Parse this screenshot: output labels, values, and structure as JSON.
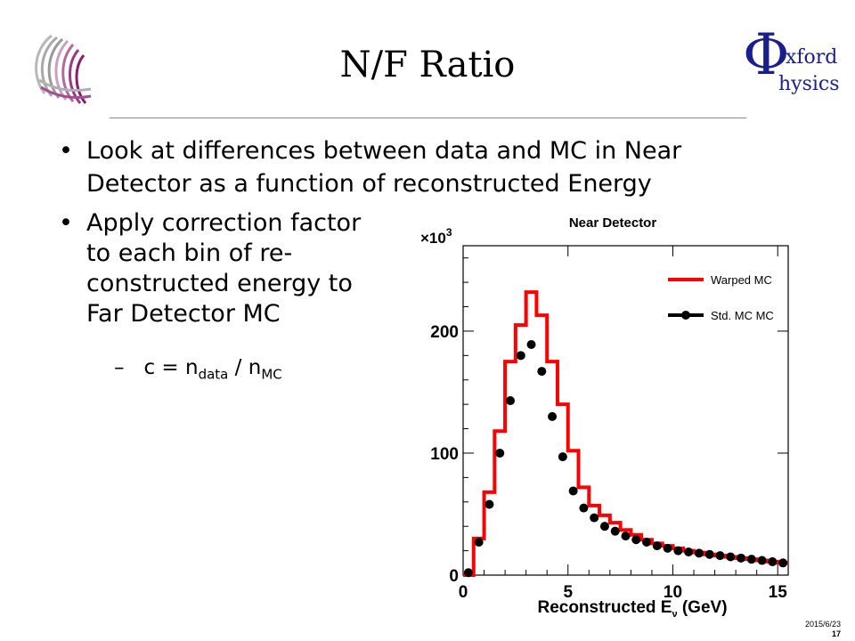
{
  "slide": {
    "title": "N/F Ratio",
    "bullet1_line1": "Look at differences between data and MC in Near",
    "bullet1_line2": "Detector as a function of reconstructed Energy",
    "bullet2_line1": "Apply correction factor",
    "bullet2_line2": "to each bin of re-",
    "bullet2_line3": "constructed energy to",
    "bullet2_line4": "Far Detector MC",
    "sub_dash": "–",
    "sub_prefix": "c = n",
    "sub_data": "data",
    "sub_sep": " / n",
    "sub_mc": "MC",
    "bullet_glyph": "•"
  },
  "logos": {
    "right_phi": "Φ",
    "right_word1": "xford",
    "right_word2": "hysics"
  },
  "footer": {
    "date": "2015/6/23",
    "page": "17"
  },
  "chart_data": {
    "type": "line",
    "title": "Near Detector",
    "xlabel": "Reconstructed E",
    "xlabel_sub": "ν",
    "xlabel_unit": " (GeV)",
    "ylabel_multiplier": "×10",
    "ylabel_exp": "3",
    "xlim": [
      0,
      15.5
    ],
    "ylim": [
      0,
      270
    ],
    "xticks": [
      0,
      5,
      10,
      15
    ],
    "yticks": [
      0,
      100,
      200
    ],
    "legend_position": "top-right",
    "bin_edges": [
      0.0,
      0.5,
      1.0,
      1.5,
      2.0,
      2.5,
      3.0,
      3.5,
      4.0,
      4.5,
      5.0,
      5.5,
      6.0,
      6.5,
      7.0,
      7.5,
      8.0,
      8.5,
      9.0,
      9.5,
      10.0,
      10.5,
      11.0,
      11.5,
      12.0,
      12.5,
      13.0,
      13.5,
      14.0,
      14.5,
      15.0,
      15.5
    ],
    "series": [
      {
        "name": "Warped MC",
        "color": "#ff0000",
        "style": "histogram",
        "values": [
          0,
          30,
          68,
          118,
          175,
          205,
          232,
          213,
          175,
          140,
          102,
          72,
          57,
          49,
          43,
          37,
          33,
          29,
          26,
          24,
          22,
          20,
          18.5,
          17,
          16,
          15,
          14,
          13,
          12,
          11,
          10
        ]
      },
      {
        "name": "Std. MC MC",
        "color": "#000000",
        "style": "markers",
        "x": [
          0.25,
          0.75,
          1.25,
          1.75,
          2.25,
          2.75,
          3.25,
          3.75,
          4.25,
          4.75,
          5.25,
          5.75,
          6.25,
          6.75,
          7.25,
          7.75,
          8.25,
          8.75,
          9.25,
          9.75,
          10.25,
          10.75,
          11.25,
          11.75,
          12.25,
          12.75,
          13.25,
          13.75,
          14.25,
          14.75,
          15.25
        ],
        "values": [
          2,
          27,
          58,
          100,
          143,
          180,
          189,
          167,
          130,
          97,
          69,
          55,
          47,
          40,
          36,
          32,
          29,
          27,
          24,
          22,
          20,
          19,
          18,
          17,
          16,
          15,
          14,
          13,
          12,
          11,
          10
        ]
      }
    ]
  }
}
